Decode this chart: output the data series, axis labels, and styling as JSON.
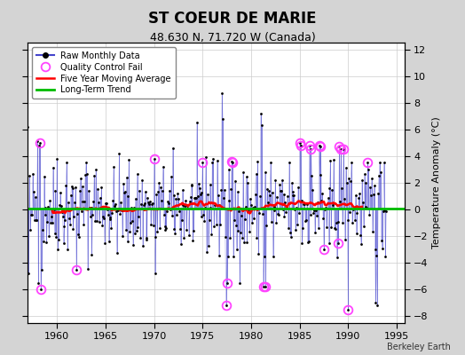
{
  "title": "ST COEUR DE MARIE",
  "subtitle": "48.630 N, 71.720 W (Canada)",
  "ylabel": "Temperature Anomaly (°C)",
  "attribution": "Berkeley Earth",
  "xlim": [
    1957.0,
    1995.8
  ],
  "ylim": [
    -8.5,
    12.5
  ],
  "yticks": [
    -8,
    -6,
    -4,
    -2,
    0,
    2,
    4,
    6,
    8,
    10,
    12
  ],
  "xticks": [
    1960,
    1965,
    1970,
    1975,
    1980,
    1985,
    1990,
    1995
  ],
  "fig_bg_color": "#d4d4d4",
  "plot_bg_color": "#ffffff",
  "raw_line_color": "#4444cc",
  "raw_line_alpha": 0.6,
  "raw_marker_color": "#000000",
  "qc_fail_color": "#ff44ff",
  "moving_avg_color": "#ff0000",
  "trend_color": "#00bb00",
  "trend_y": 0.1,
  "seed": 42,
  "n_months": 444,
  "start_year": 1957.0,
  "noise_std": 1.7
}
